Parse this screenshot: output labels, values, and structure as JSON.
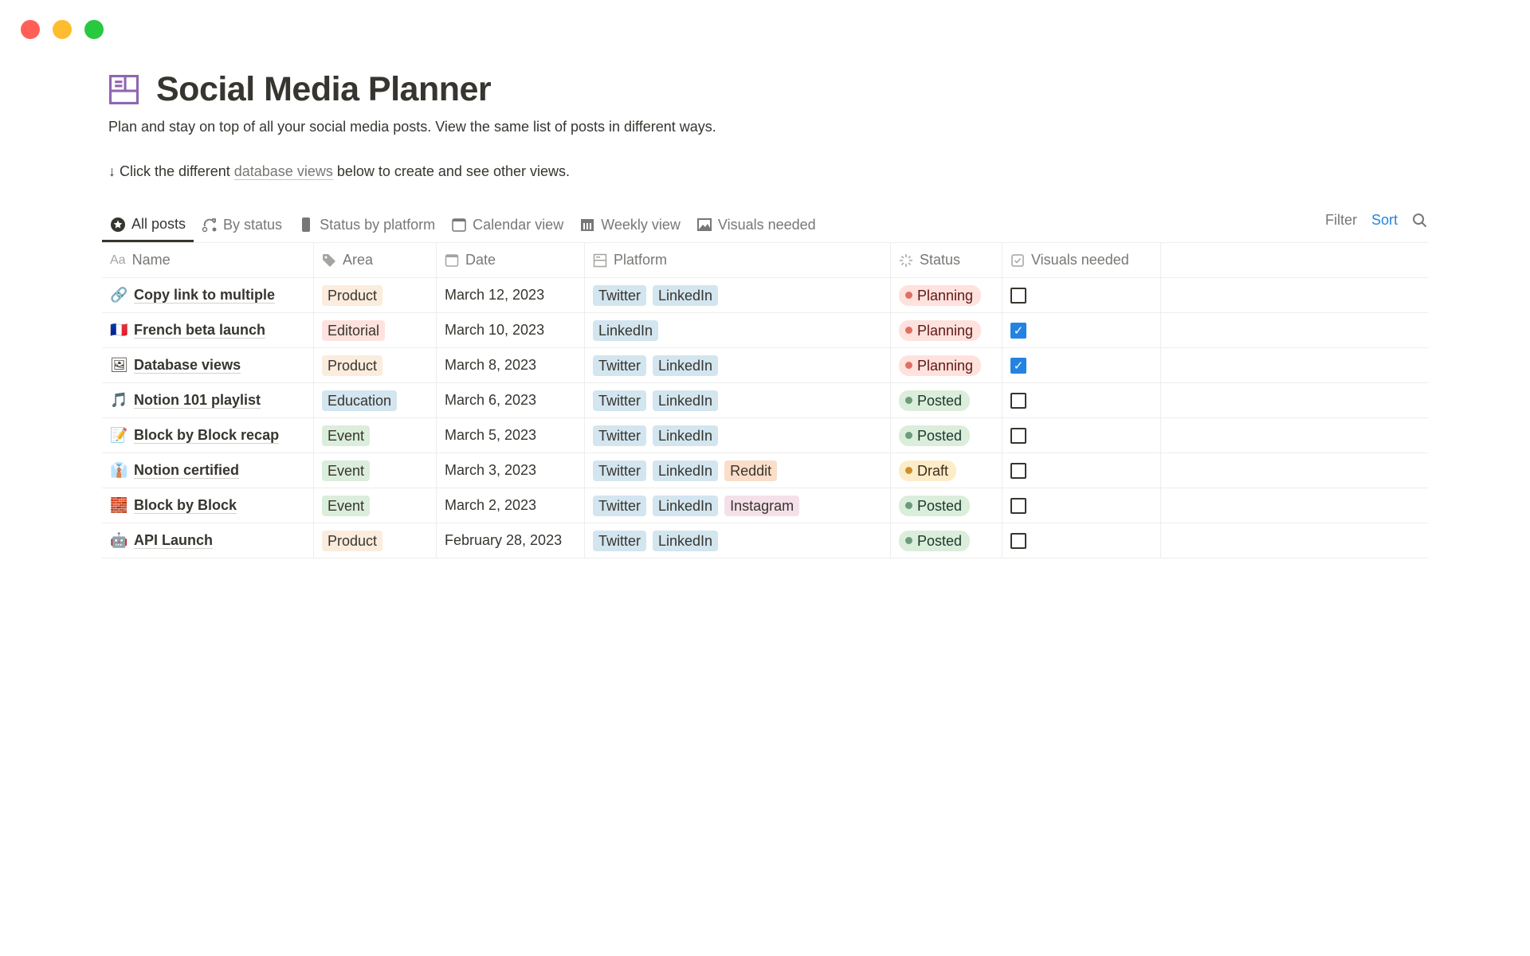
{
  "window": {
    "controls": [
      {
        "name": "close",
        "color": "#ff5f57"
      },
      {
        "name": "minimize",
        "color": "#febc2e"
      },
      {
        "name": "maximize",
        "color": "#28c840"
      }
    ]
  },
  "page": {
    "title": "Social Media Planner",
    "icon": "table-icon",
    "icon_color": "#9065b0",
    "description": "Plan and stay on top of all your social media posts. View the same list of posts in different ways.",
    "hint_prefix": "↓ Click the different ",
    "hint_link": "database views",
    "hint_suffix": " below to create and see other views."
  },
  "tabs": [
    {
      "label": "All posts",
      "icon": "star-circle-icon",
      "active": true
    },
    {
      "label": "By status",
      "icon": "status-flow-icon"
    },
    {
      "label": "Status by platform",
      "icon": "phone-icon"
    },
    {
      "label": "Calendar view",
      "icon": "calendar-icon"
    },
    {
      "label": "Weekly view",
      "icon": "weekly-calendar-icon"
    },
    {
      "label": "Visuals needed",
      "icon": "image-icon"
    }
  ],
  "actions": {
    "filter": "Filter",
    "sort": "Sort",
    "sort_color": "#2383e2"
  },
  "columns": [
    {
      "label": "Name",
      "icon": "Aa"
    },
    {
      "label": "Area",
      "icon": "tag-icon"
    },
    {
      "label": "Date",
      "icon": "calendar-icon"
    },
    {
      "label": "Platform",
      "icon": "multi-select-icon"
    },
    {
      "label": "Status",
      "icon": "status-icon"
    },
    {
      "label": "Visuals needed",
      "icon": "checkbox-icon"
    }
  ],
  "tag_colors": {
    "Product": "#fbecdd",
    "Editorial": "#ffe2dd",
    "Education": "#d3e5ef",
    "Event": "#dbeddb",
    "Twitter": "#d3e5ef",
    "LinkedIn": "#d3e5ef",
    "Reddit": "#fadec9",
    "Instagram": "#f5e0e9"
  },
  "status_colors": {
    "Planning": {
      "bg": "#ffe2dd",
      "dot": "#e16f64",
      "text": "#5d1715"
    },
    "Posted": {
      "bg": "#dbeddb",
      "dot": "#6c9b7d",
      "text": "#1c3829"
    },
    "Draft": {
      "bg": "#fdecc8",
      "dot": "#cb912f",
      "text": "#402c1b"
    }
  },
  "rows": [
    {
      "emoji": "🔗",
      "name": "Copy link to multiple",
      "area": "Product",
      "date": "March 12, 2023",
      "platforms": [
        "Twitter",
        "LinkedIn"
      ],
      "status": "Planning",
      "visuals": false
    },
    {
      "emoji": "🇫🇷",
      "name": "French beta launch",
      "area": "Editorial",
      "date": "March 10, 2023",
      "platforms": [
        "LinkedIn"
      ],
      "status": "Planning",
      "visuals": true
    },
    {
      "emoji": "🖼",
      "name": "Database views",
      "area": "Product",
      "date": "March 8, 2023",
      "platforms": [
        "Twitter",
        "LinkedIn"
      ],
      "status": "Planning",
      "visuals": true
    },
    {
      "emoji": "🎵",
      "name": "Notion 101 playlist",
      "area": "Education",
      "date": "March 6, 2023",
      "platforms": [
        "Twitter",
        "LinkedIn"
      ],
      "status": "Posted",
      "visuals": false
    },
    {
      "emoji": "📝",
      "name": "Block by Block recap",
      "area": "Event",
      "date": "March 5, 2023",
      "platforms": [
        "Twitter",
        "LinkedIn"
      ],
      "status": "Posted",
      "visuals": false
    },
    {
      "emoji": "👔",
      "name": "Notion certified",
      "area": "Event",
      "date": "March 3, 2023",
      "platforms": [
        "Twitter",
        "LinkedIn",
        "Reddit"
      ],
      "status": "Draft",
      "visuals": false
    },
    {
      "emoji": "🧱",
      "name": "Block by Block",
      "area": "Event",
      "date": "March 2, 2023",
      "platforms": [
        "Twitter",
        "LinkedIn",
        "Instagram"
      ],
      "status": "Posted",
      "visuals": false
    },
    {
      "emoji": "🤖",
      "name": "API Launch",
      "area": "Product",
      "date": "February 28, 2023",
      "platforms": [
        "Twitter",
        "LinkedIn"
      ],
      "status": "Posted",
      "visuals": false
    }
  ]
}
